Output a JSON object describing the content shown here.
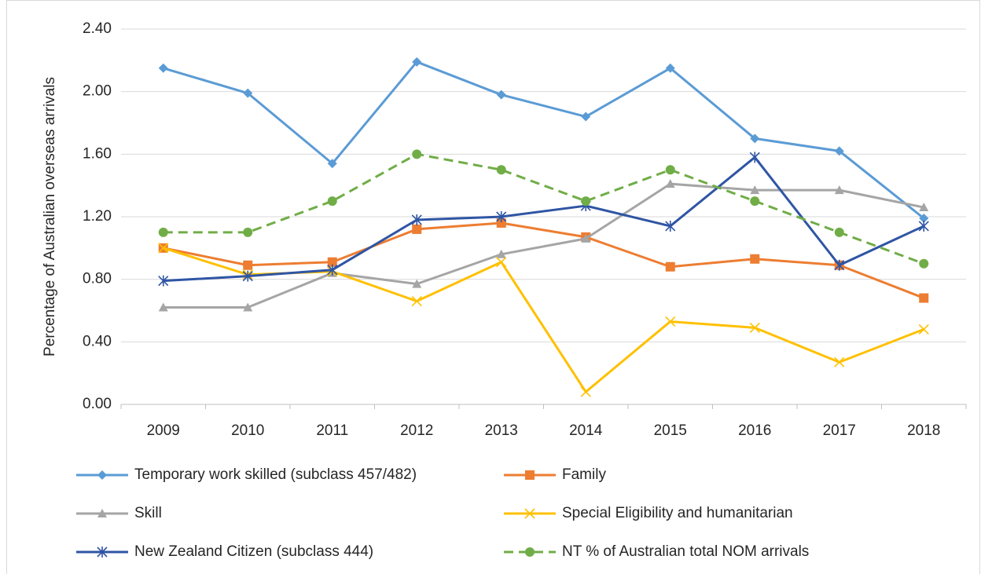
{
  "chart_data": {
    "type": "line",
    "y_axis_label": "Percentage of Australian overseas arrivals",
    "categories": [
      "2009",
      "2010",
      "2011",
      "2012",
      "2013",
      "2014",
      "2015",
      "2016",
      "2017",
      "2018"
    ],
    "series": [
      {
        "name": "Temporary work skilled (subclass 457/482)",
        "color": "#5b9bd5",
        "marker": "diamond",
        "dashed": false,
        "values": [
          2.15,
          1.99,
          1.54,
          2.19,
          1.98,
          1.84,
          2.15,
          1.7,
          1.62,
          1.19
        ]
      },
      {
        "name": "Family",
        "color": "#ed7d31",
        "marker": "square",
        "dashed": false,
        "values": [
          1.0,
          0.89,
          0.91,
          1.12,
          1.16,
          1.07,
          0.88,
          0.93,
          0.89,
          0.68
        ]
      },
      {
        "name": "Skill",
        "color": "#a5a5a5",
        "marker": "triangle",
        "dashed": false,
        "values": [
          0.62,
          0.62,
          0.84,
          0.77,
          0.96,
          1.06,
          1.41,
          1.37,
          1.37,
          1.26
        ]
      },
      {
        "name": "Special Eligibility and humanitarian",
        "color": "#ffc000",
        "marker": "x",
        "dashed": false,
        "values": [
          1.0,
          0.83,
          0.85,
          0.66,
          0.91,
          0.08,
          0.53,
          0.49,
          0.27,
          0.48
        ]
      },
      {
        "name": "New Zealand Citizen (subclass 444)",
        "color": "#2f55a4",
        "marker": "star",
        "dashed": false,
        "values": [
          0.79,
          0.82,
          0.86,
          1.18,
          1.2,
          1.27,
          1.14,
          1.58,
          0.89,
          1.14
        ]
      },
      {
        "name": "NT % of Australian total NOM arrivals",
        "color": "#70ad47",
        "marker": "circle",
        "dashed": true,
        "values": [
          1.1,
          1.1,
          1.3,
          1.6,
          1.5,
          1.3,
          1.5,
          1.3,
          1.1,
          0.9
        ]
      }
    ],
    "ylim": [
      0,
      2.4
    ],
    "yticks": [
      {
        "value": 0,
        "label": "0.00"
      },
      {
        "value": 0.4,
        "label": "0.40"
      },
      {
        "value": 0.8,
        "label": "0.80"
      },
      {
        "value": 1.2,
        "label": "1.20"
      },
      {
        "value": 1.6,
        "label": "1.60"
      },
      {
        "value": 2.0,
        "label": "2.00"
      },
      {
        "value": 2.4,
        "label": "2.40"
      }
    ],
    "grid": true,
    "legend": "bottom"
  }
}
